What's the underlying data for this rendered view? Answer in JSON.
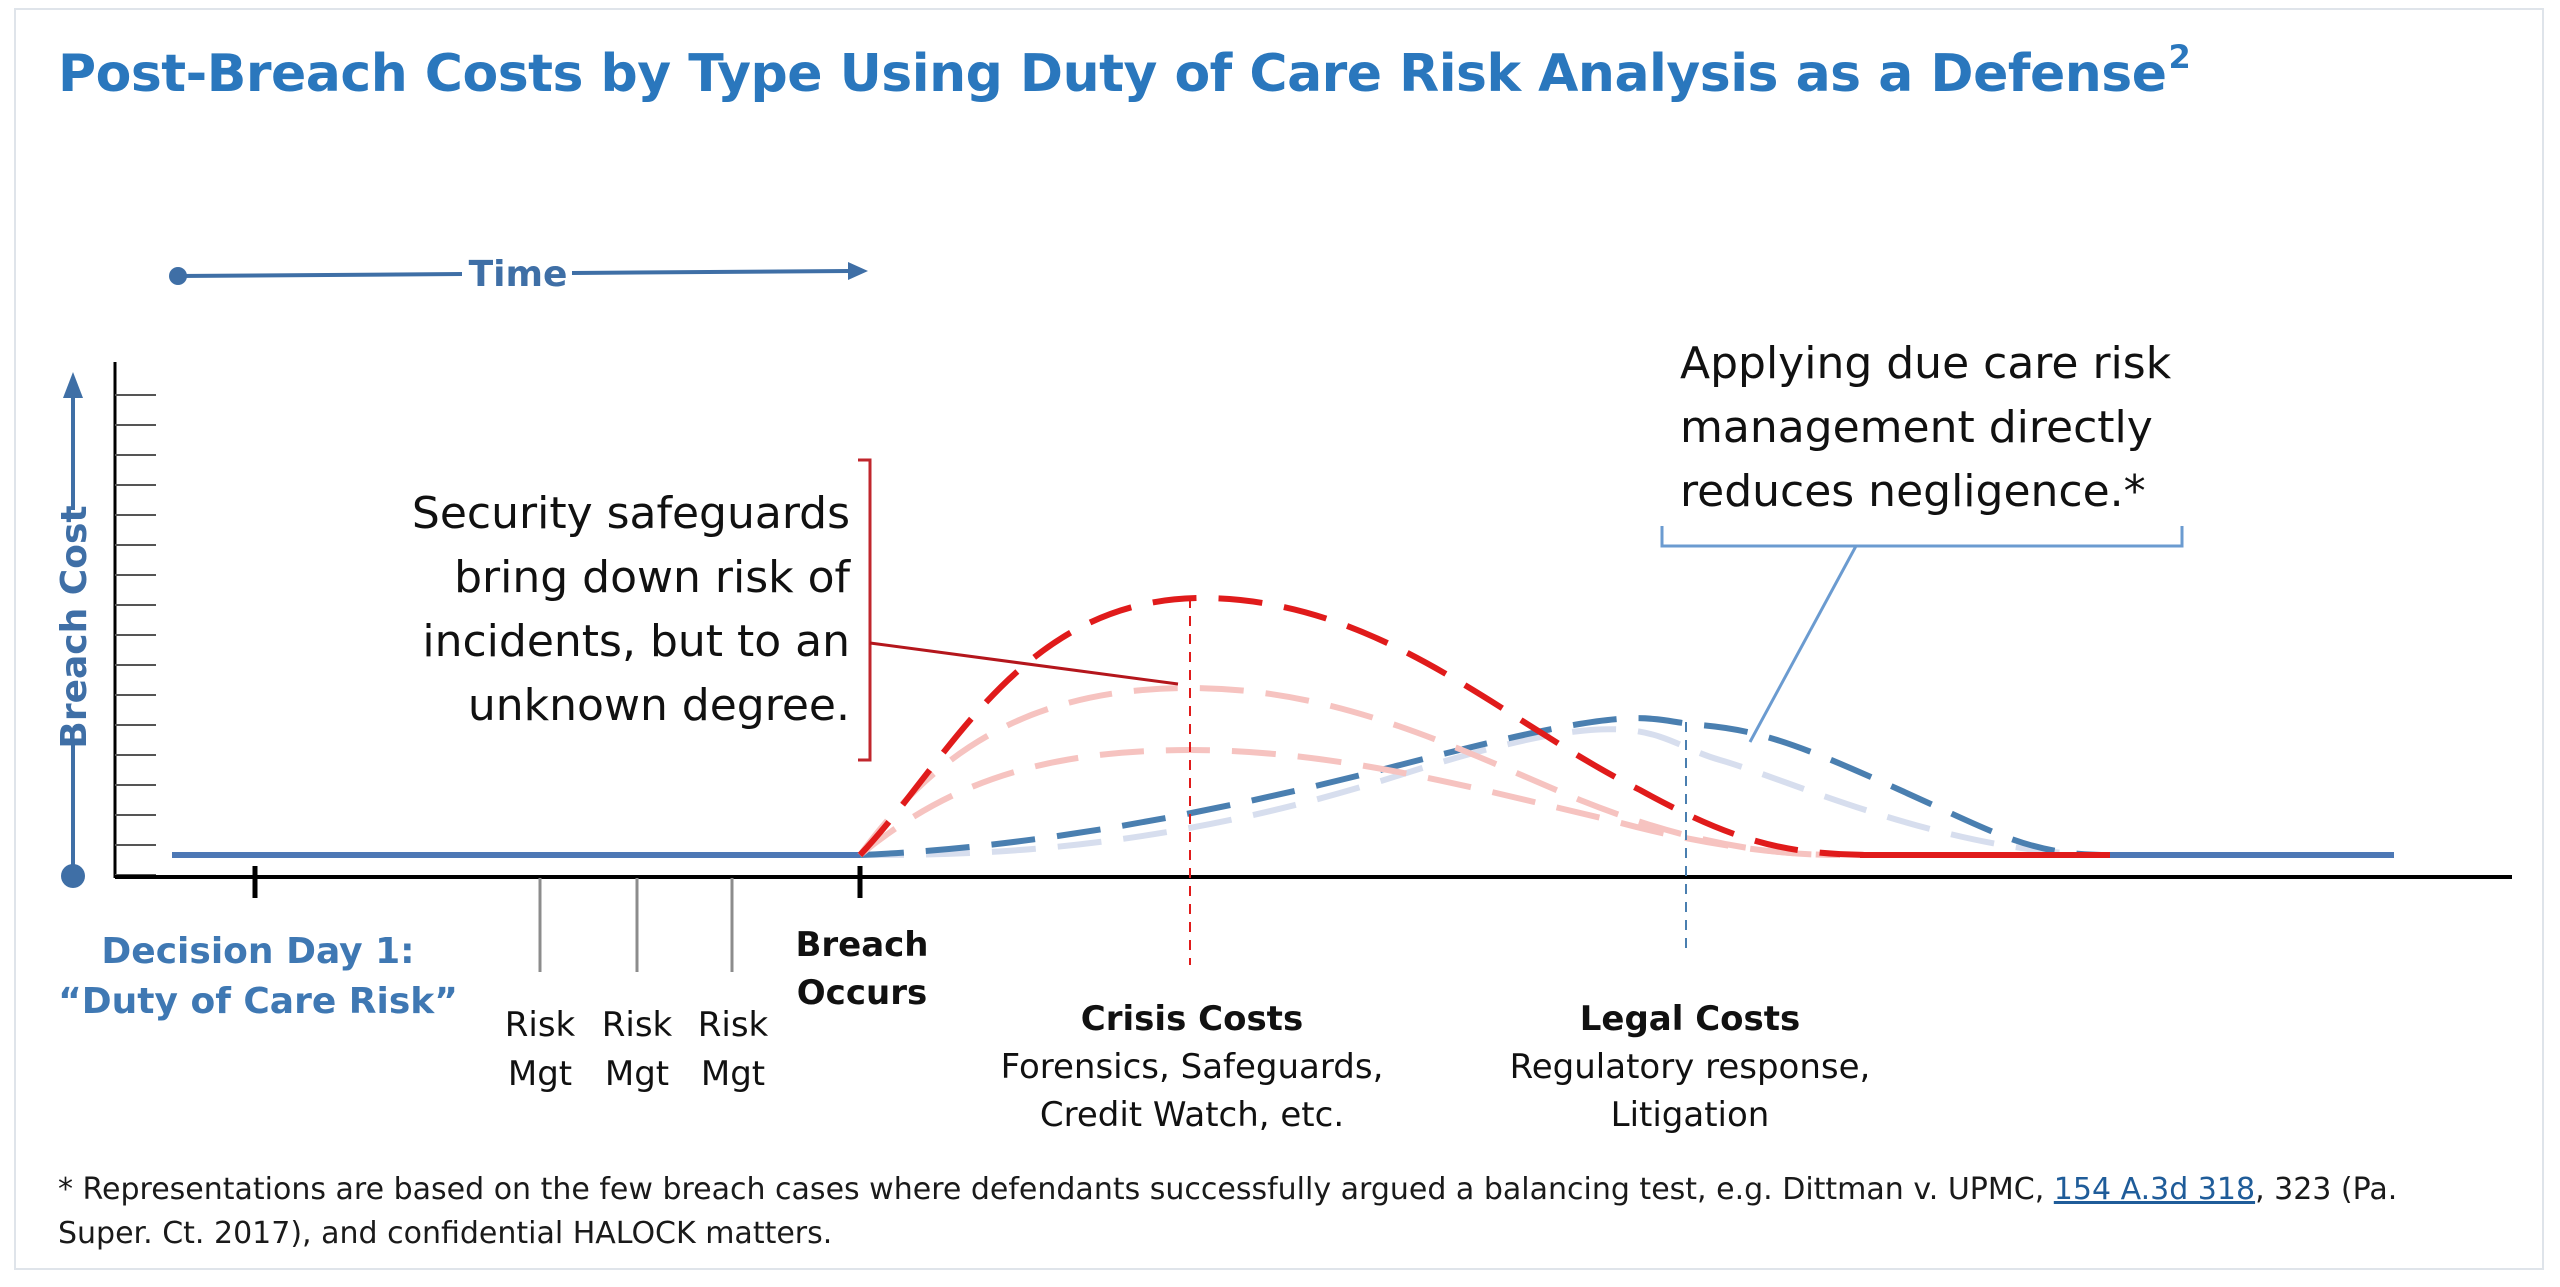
{
  "title": {
    "text": "Post-Breach Costs by Type Using Duty of Care Risk Analysis as a Defense",
    "superscript": "2"
  },
  "axes": {
    "time_label": "Time",
    "breach_cost_label": "Breach Cost"
  },
  "timeline": {
    "decision_day_line1": "Decision Day 1:",
    "decision_day_line2": "“Duty of Care Risk”",
    "risk_mgt": [
      {
        "line1": "Risk",
        "line2": "Mgt"
      },
      {
        "line1": "Risk",
        "line2": "Mgt"
      },
      {
        "line1": "Risk",
        "line2": "Mgt"
      }
    ],
    "breach_line1": "Breach",
    "breach_line2": "Occurs"
  },
  "costs": {
    "crisis": {
      "heading": "Crisis Costs",
      "line1": "Forensics, Safeguards,",
      "line2": "Credit Watch, etc."
    },
    "legal": {
      "heading": "Legal Costs",
      "line1": "Regulatory response,",
      "line2": "Litigation"
    }
  },
  "callouts": {
    "safeguards": [
      "Security safeguards",
      "bring down risk of",
      "incidents, but to an",
      "unknown degree."
    ],
    "due_care": [
      "Applying due care risk",
      "management directly",
      "reduces negligence.*"
    ]
  },
  "footnote": {
    "before_link": "* Representations are based on the few breach cases where defendants successfully argued a balancing test, e.g. Dittman v. UPMC, ",
    "link_text": "154 A.3d 318",
    "after_link": ", 323 (Pa. Super. Ct. 2017), and confidential HALOCK matters."
  },
  "colors": {
    "title": "#2a77bd",
    "axis_blue": "#3f6fa6",
    "crisis_red": "#e01b1b",
    "crisis_light": "#f6c3c0",
    "legal_blue": "#4a7fb0",
    "legal_light": "#d7deee",
    "bracket_red": "#c0262c",
    "bracket_blue": "#6b9bd0"
  }
}
